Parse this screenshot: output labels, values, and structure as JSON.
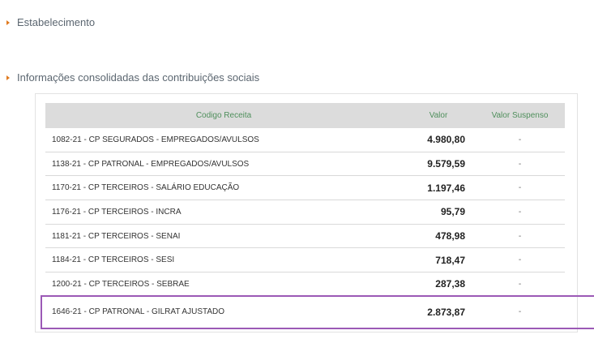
{
  "sections": {
    "establishments": "Estabelecimento",
    "consolidated": "Informações consolidadas das contribuições sociais"
  },
  "table": {
    "headers": {
      "code": "Codigo Receita",
      "value": "Valor",
      "suspended": "Valor Suspenso"
    },
    "rows": [
      {
        "code": "1082-21 - CP SEGURADOS - EMPREGADOS/AVULSOS",
        "value": "4.980,80",
        "suspended": "-"
      },
      {
        "code": "1138-21 - CP PATRONAL - EMPREGADOS/AVULSOS",
        "value": "9.579,59",
        "suspended": "-"
      },
      {
        "code": "1170-21 - CP TERCEIROS - SALÁRIO EDUCAÇÃO",
        "value": "1.197,46",
        "suspended": "-"
      },
      {
        "code": "1176-21 - CP TERCEIROS - INCRA",
        "value": "95,79",
        "suspended": "-"
      },
      {
        "code": "1181-21 - CP TERCEIROS - SENAI",
        "value": "478,98",
        "suspended": "-"
      },
      {
        "code": "1184-21 - CP TERCEIROS - SESI",
        "value": "718,47",
        "suspended": "-"
      },
      {
        "code": "1200-21 - CP TERCEIROS - SEBRAE",
        "value": "287,38",
        "suspended": "-"
      },
      {
        "code": "1646-21 - CP PATRONAL - GILRAT AJUSTADO",
        "value": "2.873,87",
        "suspended": "-"
      }
    ]
  },
  "colors": {
    "bullet": "#e07a1f",
    "header_text": "#4f8f5c",
    "highlight_border": "#9b59b6"
  }
}
